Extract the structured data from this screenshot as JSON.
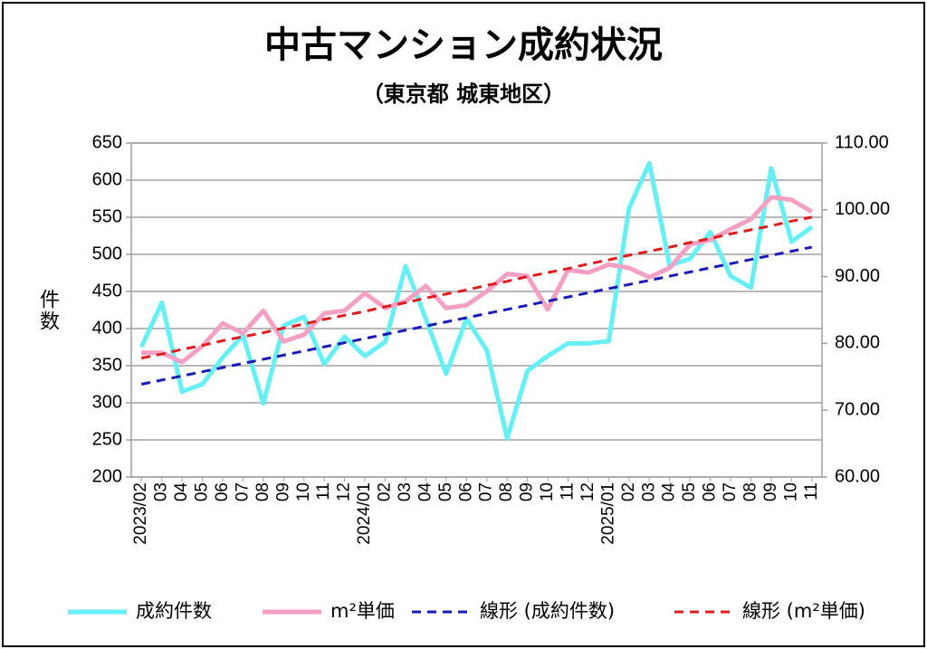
{
  "chart_data": {
    "type": "line",
    "title": "中古マンション成約状況",
    "subtitle": "（東京都 城東地区）",
    "ylabel": "件数",
    "categories": [
      "2023/02",
      "03",
      "04",
      "05",
      "06",
      "07",
      "08",
      "09",
      "10",
      "11",
      "12",
      "2024/01",
      "02",
      "03",
      "04",
      "05",
      "06",
      "07",
      "08",
      "09",
      "10",
      "11",
      "12",
      "2025/01",
      "02",
      "03",
      "04",
      "05",
      "06",
      "07",
      "08",
      "09",
      "10",
      "11"
    ],
    "ylim": [
      200,
      650
    ],
    "yticks": [
      200,
      250,
      300,
      350,
      400,
      450,
      500,
      550,
      600,
      650
    ],
    "y2lim": [
      60,
      110
    ],
    "y2ticks": [
      {
        "value": 60,
        "label": "60.00"
      },
      {
        "value": 70,
        "label": "70.00"
      },
      {
        "value": 80,
        "label": "80.00"
      },
      {
        "value": 90,
        "label": "90.00"
      },
      {
        "value": 100,
        "label": "100.00"
      },
      {
        "value": 110,
        "label": "110.00"
      }
    ],
    "grid": true,
    "legend": "bottom",
    "series": [
      {
        "name": "成約件数",
        "color": "#66f0f5",
        "line_style": "solid",
        "values": [
          375,
          435,
          315,
          325,
          361,
          391,
          299,
          404,
          416,
          352,
          389,
          363,
          382,
          484,
          413,
          339,
          413,
          371,
          252,
          343,
          363,
          380,
          380,
          383,
          562,
          623,
          485,
          494,
          530,
          471,
          455,
          616,
          517,
          537
        ]
      },
      {
        "name": "m²単価",
        "color": "#f4a0c4",
        "line_style": "solid",
        "axis": "y2",
        "values": [
          78.6,
          78.6,
          77.2,
          79.6,
          83.0,
          81.5,
          84.9,
          80.3,
          81.3,
          84.5,
          84.9,
          87.5,
          85.3,
          86.3,
          88.6,
          85.3,
          85.7,
          87.8,
          90.4,
          90.1,
          85.1,
          91.0,
          90.6,
          91.8,
          91.3,
          89.9,
          91.3,
          94.8,
          95.5,
          97.1,
          98.6,
          101.9,
          101.5,
          99.7
        ]
      },
      {
        "name": "線形 (成約件数)",
        "color": "#1a1ab8",
        "line_style": "dashed",
        "values": [
          325.0,
          330.6,
          336.2,
          341.8,
          347.4,
          353.0,
          358.6,
          364.2,
          369.8,
          375.4,
          381.0,
          386.6,
          392.2,
          397.8,
          403.4,
          409.0,
          414.6,
          420.2,
          425.8,
          431.4,
          437.0,
          442.6,
          448.2,
          453.8,
          459.4,
          465.0,
          470.6,
          476.2,
          481.8,
          487.4,
          493.0,
          498.6,
          504.2,
          509.8
        ]
      },
      {
        "name": "線形 (m²単価)",
        "color": "#e01c1c",
        "line_style": "dashed",
        "axis": "y2",
        "values": [
          77.8,
          78.4,
          79.1,
          79.7,
          80.4,
          81.0,
          81.6,
          82.3,
          82.9,
          83.6,
          84.2,
          84.8,
          85.5,
          86.1,
          86.8,
          87.4,
          88.0,
          88.7,
          89.3,
          90.0,
          90.6,
          91.2,
          91.9,
          92.5,
          93.2,
          93.8,
          94.4,
          95.1,
          95.7,
          96.4,
          97.0,
          97.6,
          98.3,
          98.9
        ]
      }
    ]
  }
}
